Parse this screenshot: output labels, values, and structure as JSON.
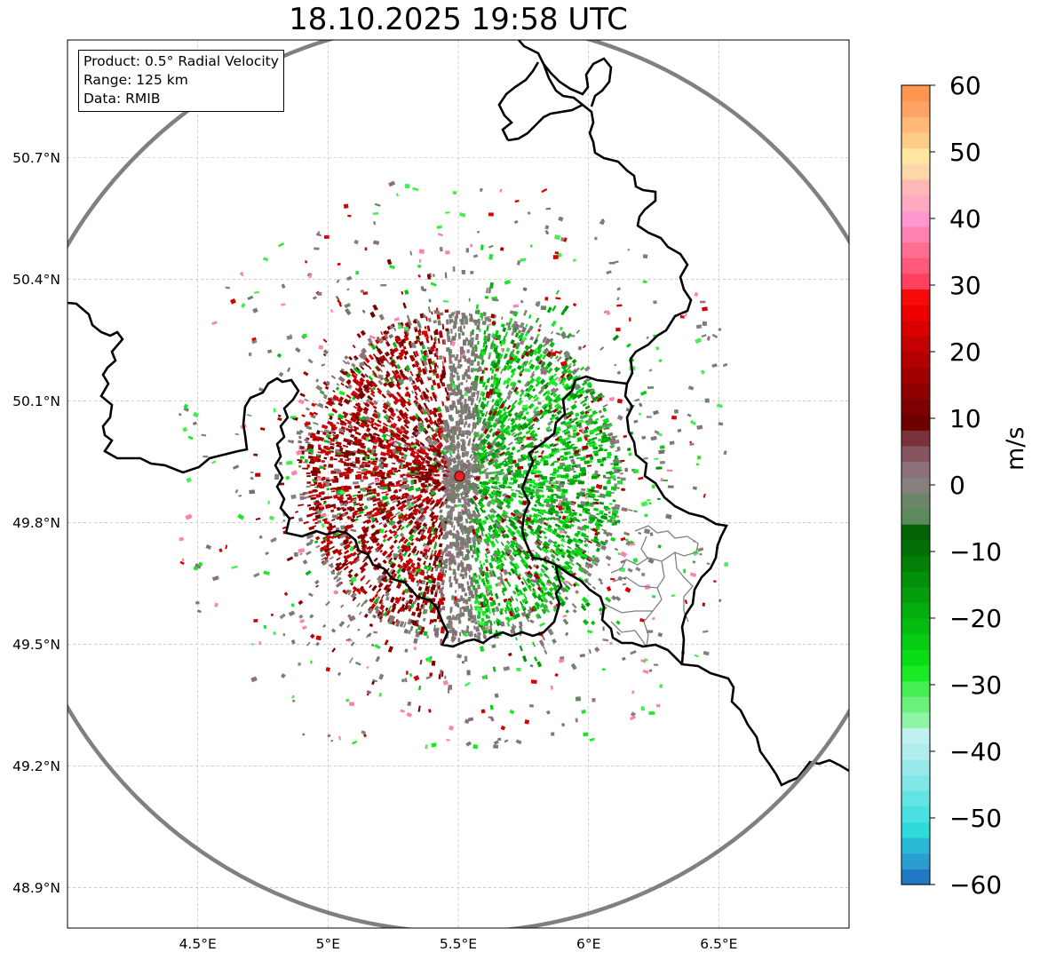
{
  "figure": {
    "title": "18.10.2025 19:58 UTC"
  },
  "info_box": {
    "lines": [
      "Product: 0.5° Radial Velocity",
      "Range: 125 km",
      "Data: RMIB"
    ]
  },
  "map": {
    "lon_range": [
      4.0,
      7.0
    ],
    "lat_range": [
      48.8,
      50.99
    ],
    "x_ticks": [
      {
        "value": 4.5,
        "label": "4.5°E"
      },
      {
        "value": 5.0,
        "label": "5°E"
      },
      {
        "value": 5.5,
        "label": "5.5°E"
      },
      {
        "value": 6.0,
        "label": "6°E"
      },
      {
        "value": 6.5,
        "label": "6.5°E"
      }
    ],
    "y_ticks": [
      {
        "value": 50.7,
        "label": "50.7°N"
      },
      {
        "value": 50.4,
        "label": "50.4°N"
      },
      {
        "value": 50.1,
        "label": "50.1°N"
      },
      {
        "value": 49.8,
        "label": "49.8°N"
      },
      {
        "value": 49.5,
        "label": "49.5°N"
      },
      {
        "value": 49.2,
        "label": "49.2°N"
      },
      {
        "value": 48.9,
        "label": "48.9°N"
      }
    ],
    "radar_site": {
      "lon": 5.505,
      "lat": 49.914,
      "color": "#e8202a"
    },
    "range_ring_km": 125,
    "range_ring_color": "#808080",
    "border_color": "#000000",
    "region_border_color": "#808080",
    "grid_color": "#bbbbbb"
  },
  "colorbar": {
    "label": "m/s",
    "vmin": -60,
    "vmax": 60,
    "ticks": [
      60,
      50,
      40,
      30,
      20,
      10,
      0,
      -10,
      -20,
      -30,
      -40,
      -50,
      -60
    ],
    "tick_labels": [
      "60",
      "50",
      "40",
      "30",
      "20",
      "10",
      "0",
      "−10",
      "−20",
      "−30",
      "−40",
      "−50",
      "−60"
    ],
    "colors": [
      "#2178c4",
      "#2a9ed0",
      "#27b9d6",
      "#2fdada",
      "#48e0e0",
      "#63e4e4",
      "#80e6e6",
      "#98eaea",
      "#b0eeee",
      "#c0f1f1",
      "#8ef4a6",
      "#6cf07c",
      "#45ee52",
      "#1aea26",
      "#07dc15",
      "#06cc12",
      "#05bd10",
      "#04ad0e",
      "#049e0c",
      "#038f0a",
      "#037f08",
      "#026f06",
      "#016303",
      "#5c8a5c",
      "#6a8567",
      "#888080",
      "#8c707a",
      "#875560",
      "#7a3238",
      "#6e0000",
      "#7e0000",
      "#8e0000",
      "#a00000",
      "#b20000",
      "#c40000",
      "#d80000",
      "#ec0000",
      "#f60a0a",
      "#ff4060",
      "#ff5878",
      "#ff6e90",
      "#ff82b0",
      "#ff96d2",
      "#ffaabe",
      "#ffb8b8",
      "#ffd6a8",
      "#ffe6a0",
      "#ffcc88",
      "#ffb878",
      "#ffa464",
      "#ff9650"
    ]
  }
}
